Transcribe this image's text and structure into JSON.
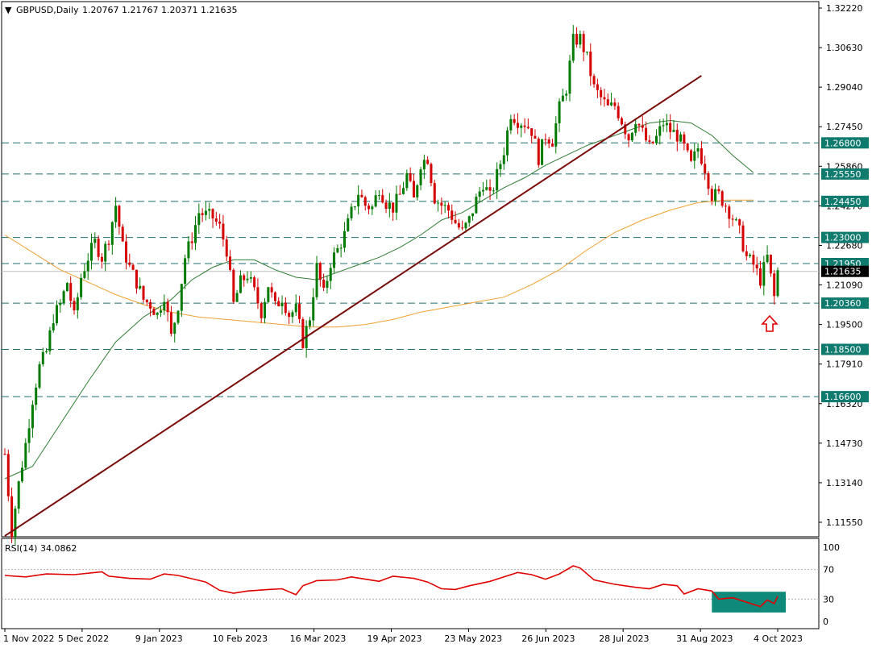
{
  "header": {
    "symbol_timeframe": "GBPUSD,Daily",
    "ohlc": "1.20767 1.21767 1.20371 1.21635"
  },
  "colors": {
    "bull": "#007a00",
    "bear": "#d40000",
    "level_line": "#1f6f6f",
    "level_label_bg": "#0f7a6e",
    "trendline": "#7a0a0a",
    "ma_fast": "#2e7d32",
    "ma_slow": "#f0a030",
    "rsi": "#e00000",
    "rsi_box": "#0f8a7a",
    "arrow": "#e00000"
  },
  "chart_data": {
    "type": "candlestick",
    "symbol": "GBPUSD",
    "timeframe": "Daily",
    "ylim": [
      1.1155,
      1.3222
    ],
    "y_ticks": [
      "1.32220",
      "1.30630",
      "1.29040",
      "1.27450",
      "1.25860",
      "1.24270",
      "1.22680",
      "1.21090",
      "1.19500",
      "1.17910",
      "1.16320",
      "1.14730",
      "1.13140",
      "1.11550"
    ],
    "x_ticks": [
      "1 Nov 2022",
      "5 Dec 2022",
      "9 Jan 2023",
      "10 Feb 2023",
      "16 Mar 2023",
      "19 Apr 2023",
      "23 May 2023",
      "26 Jun 2023",
      "28 Jul 2023",
      "31 Aug 2023",
      "4 Oct 2023"
    ],
    "current_price": "1.21635",
    "horizontal_levels": [
      "1.26800",
      "1.25550",
      "1.24450",
      "1.23000",
      "1.21950",
      "1.20360",
      "1.18500",
      "1.16600"
    ],
    "price_path": [
      [
        0,
        1.143
      ],
      [
        2,
        1.112
      ],
      [
        4,
        1.131
      ],
      [
        6,
        1.147
      ],
      [
        8,
        1.165
      ],
      [
        10,
        1.178
      ],
      [
        12,
        1.184
      ],
      [
        14,
        1.198
      ],
      [
        16,
        1.203
      ],
      [
        18,
        1.212
      ],
      [
        20,
        1.198
      ],
      [
        22,
        1.214
      ],
      [
        24,
        1.222
      ],
      [
        26,
        1.228
      ],
      [
        28,
        1.222
      ],
      [
        30,
        1.23
      ],
      [
        32,
        1.243
      ],
      [
        34,
        1.226
      ],
      [
        36,
        1.218
      ],
      [
        38,
        1.212
      ],
      [
        40,
        1.205
      ],
      [
        42,
        1.203
      ],
      [
        44,
        1.199
      ],
      [
        46,
        1.207
      ],
      [
        48,
        1.19
      ],
      [
        50,
        1.203
      ],
      [
        52,
        1.222
      ],
      [
        54,
        1.23
      ],
      [
        56,
        1.24
      ],
      [
        58,
        1.239
      ],
      [
        60,
        1.238
      ],
      [
        62,
        1.234
      ],
      [
        64,
        1.225
      ],
      [
        66,
        1.203
      ],
      [
        68,
        1.212
      ],
      [
        70,
        1.215
      ],
      [
        72,
        1.208
      ],
      [
        74,
        1.2
      ],
      [
        76,
        1.211
      ],
      [
        78,
        1.202
      ],
      [
        80,
        1.206
      ],
      [
        82,
        1.199
      ],
      [
        84,
        1.201
      ],
      [
        86,
        1.188
      ],
      [
        88,
        1.198
      ],
      [
        90,
        1.218
      ],
      [
        92,
        1.207
      ],
      [
        94,
        1.22
      ],
      [
        96,
        1.225
      ],
      [
        98,
        1.231
      ],
      [
        100,
        1.24
      ],
      [
        102,
        1.248
      ],
      [
        104,
        1.243
      ],
      [
        106,
        1.242
      ],
      [
        108,
        1.25
      ],
      [
        110,
        1.244
      ],
      [
        112,
        1.242
      ],
      [
        114,
        1.247
      ],
      [
        116,
        1.255
      ],
      [
        118,
        1.245
      ],
      [
        120,
        1.26
      ],
      [
        122,
        1.262
      ],
      [
        124,
        1.246
      ],
      [
        126,
        1.243
      ],
      [
        128,
        1.241
      ],
      [
        130,
        1.236
      ],
      [
        132,
        1.232
      ],
      [
        134,
        1.237
      ],
      [
        136,
        1.245
      ],
      [
        138,
        1.252
      ],
      [
        140,
        1.246
      ],
      [
        142,
        1.255
      ],
      [
        144,
        1.265
      ],
      [
        146,
        1.28
      ],
      [
        148,
        1.277
      ],
      [
        150,
        1.276
      ],
      [
        152,
        1.273
      ],
      [
        154,
        1.262
      ],
      [
        156,
        1.271
      ],
      [
        158,
        1.269
      ],
      [
        160,
        1.282
      ],
      [
        162,
        1.29
      ],
      [
        164,
        1.309
      ],
      [
        166,
        1.31
      ],
      [
        168,
        1.302
      ],
      [
        170,
        1.29
      ],
      [
        172,
        1.286
      ],
      [
        174,
        1.282
      ],
      [
        176,
        1.283
      ],
      [
        178,
        1.277
      ],
      [
        180,
        1.27
      ],
      [
        182,
        1.278
      ],
      [
        184,
        1.272
      ],
      [
        186,
        1.266
      ],
      [
        188,
        1.27
      ],
      [
        190,
        1.276
      ],
      [
        192,
        1.273
      ],
      [
        194,
        1.271
      ],
      [
        196,
        1.266
      ],
      [
        198,
        1.259
      ],
      [
        200,
        1.266
      ],
      [
        202,
        1.258
      ],
      [
        204,
        1.247
      ],
      [
        206,
        1.247
      ],
      [
        208,
        1.243
      ],
      [
        210,
        1.238
      ],
      [
        212,
        1.232
      ],
      [
        214,
        1.222
      ],
      [
        216,
        1.219
      ],
      [
        218,
        1.213
      ],
      [
        220,
        1.222
      ],
      [
        222,
        1.206
      ],
      [
        223,
        1.2164
      ]
    ],
    "trendline": [
      [
        0,
        1.11
      ],
      [
        201,
        1.295
      ]
    ],
    "ma_fast": [
      [
        0,
        1.133
      ],
      [
        8,
        1.138
      ],
      [
        16,
        1.155
      ],
      [
        24,
        1.172
      ],
      [
        32,
        1.188
      ],
      [
        40,
        1.198
      ],
      [
        48,
        1.205
      ],
      [
        54,
        1.213
      ],
      [
        60,
        1.218
      ],
      [
        66,
        1.221
      ],
      [
        72,
        1.221
      ],
      [
        78,
        1.217
      ],
      [
        84,
        1.214
      ],
      [
        90,
        1.213
      ],
      [
        96,
        1.216
      ],
      [
        102,
        1.219
      ],
      [
        108,
        1.222
      ],
      [
        114,
        1.226
      ],
      [
        120,
        1.231
      ],
      [
        126,
        1.237
      ],
      [
        132,
        1.24
      ],
      [
        138,
        1.245
      ],
      [
        144,
        1.25
      ],
      [
        150,
        1.254
      ],
      [
        156,
        1.259
      ],
      [
        162,
        1.263
      ],
      [
        168,
        1.267
      ],
      [
        174,
        1.27
      ],
      [
        180,
        1.273
      ],
      [
        186,
        1.276
      ],
      [
        192,
        1.277
      ],
      [
        198,
        1.276
      ],
      [
        204,
        1.271
      ],
      [
        210,
        1.263
      ],
      [
        216,
        1.256
      ]
    ],
    "ma_slow": [
      [
        0,
        1.231
      ],
      [
        8,
        1.224
      ],
      [
        16,
        1.217
      ],
      [
        24,
        1.212
      ],
      [
        32,
        1.207
      ],
      [
        40,
        1.203
      ],
      [
        48,
        1.2
      ],
      [
        56,
        1.198
      ],
      [
        64,
        1.197
      ],
      [
        72,
        1.196
      ],
      [
        80,
        1.195
      ],
      [
        88,
        1.194
      ],
      [
        96,
        1.194
      ],
      [
        104,
        1.195
      ],
      [
        112,
        1.197
      ],
      [
        120,
        1.2
      ],
      [
        128,
        1.202
      ],
      [
        136,
        1.204
      ],
      [
        144,
        1.206
      ],
      [
        152,
        1.211
      ],
      [
        160,
        1.217
      ],
      [
        168,
        1.225
      ],
      [
        176,
        1.232
      ],
      [
        184,
        1.237
      ],
      [
        192,
        1.241
      ],
      [
        200,
        1.244
      ],
      [
        208,
        1.245
      ],
      [
        216,
        1.245
      ]
    ],
    "x_max": 225,
    "rsi": {
      "label": "RSI(14) 34.0862",
      "ylim": [
        0,
        100
      ],
      "y_ticks": [
        "100",
        "70",
        "30",
        "0"
      ],
      "levels": [
        70,
        30
      ],
      "values": [
        [
          0,
          62
        ],
        [
          6,
          60
        ],
        [
          12,
          64
        ],
        [
          20,
          63
        ],
        [
          28,
          67
        ],
        [
          30,
          61
        ],
        [
          36,
          58
        ],
        [
          42,
          57
        ],
        [
          46,
          64
        ],
        [
          50,
          62
        ],
        [
          58,
          53
        ],
        [
          62,
          42
        ],
        [
          66,
          38
        ],
        [
          70,
          41
        ],
        [
          76,
          43
        ],
        [
          80,
          44
        ],
        [
          84,
          36
        ],
        [
          86,
          48
        ],
        [
          90,
          55
        ],
        [
          96,
          56
        ],
        [
          100,
          60
        ],
        [
          104,
          57
        ],
        [
          108,
          54
        ],
        [
          112,
          61
        ],
        [
          118,
          58
        ],
        [
          122,
          53
        ],
        [
          126,
          44
        ],
        [
          130,
          43
        ],
        [
          134,
          48
        ],
        [
          140,
          54
        ],
        [
          144,
          60
        ],
        [
          148,
          66
        ],
        [
          152,
          63
        ],
        [
          156,
          57
        ],
        [
          160,
          64
        ],
        [
          164,
          75
        ],
        [
          166,
          72
        ],
        [
          170,
          56
        ],
        [
          176,
          50
        ],
        [
          182,
          46
        ],
        [
          186,
          44
        ],
        [
          190,
          50
        ],
        [
          194,
          48
        ],
        [
          196,
          37
        ],
        [
          200,
          44
        ],
        [
          204,
          41
        ],
        [
          206,
          30
        ],
        [
          210,
          32
        ],
        [
          214,
          26
        ],
        [
          218,
          20
        ],
        [
          220,
          29
        ],
        [
          222,
          24
        ],
        [
          223,
          34
        ]
      ],
      "highlight_box": {
        "x_from": 204,
        "x_to": 223,
        "y_from": 12,
        "y_to": 40
      }
    }
  }
}
